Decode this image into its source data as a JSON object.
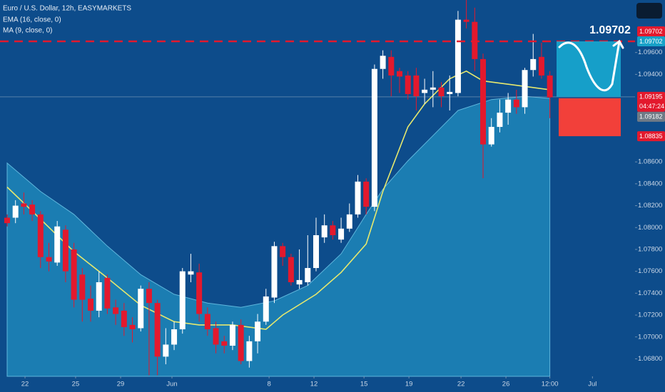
{
  "chart_data": {
    "type": "candlestick",
    "title": "Euro / U.S. Dollar, 12h, EASYMARKETS",
    "up_color": "#ffffff",
    "down_color": "#e3192d",
    "x": [
      0,
      1,
      2,
      3,
      4,
      5,
      6,
      7,
      8,
      9,
      10,
      11,
      12,
      13,
      14,
      15,
      16,
      17,
      18,
      19,
      20,
      21,
      22,
      23,
      24,
      25,
      26,
      27,
      28,
      29,
      30,
      31,
      32,
      33,
      34,
      35,
      36,
      37,
      38,
      39,
      40,
      41,
      42,
      43,
      44,
      45,
      46,
      47,
      48,
      49,
      50,
      51,
      52,
      53,
      54,
      55,
      56,
      57,
      58,
      59,
      60,
      61,
      62,
      63,
      64,
      65
    ],
    "open": [
      1.0809,
      1.0809,
      1.0822,
      1.0821,
      1.0812,
      1.0773,
      1.0768,
      1.0798,
      1.078,
      1.0757,
      1.0735,
      1.0724,
      1.0754,
      1.0727,
      1.0724,
      1.0711,
      1.0708,
      1.0744,
      1.0731,
      1.0682,
      1.0693,
      1.0707,
      1.0757,
      1.0759,
      1.0721,
      1.0708,
      1.0696,
      1.0692,
      1.0711,
      1.0678,
      1.0696,
      1.0714,
      1.0736,
      1.0783,
      1.0773,
      1.0748,
      1.075,
      1.0763,
      1.0791,
      1.0802,
      1.0789,
      1.0799,
      1.0812,
      1.0842,
      1.0819,
      1.0945,
      1.0956,
      1.0943,
      1.0939,
      1.0939,
      1.0923,
      1.0926,
      1.0928,
      1.0922,
      1.0923,
      1.099,
      1.0988,
      1.0954,
      1.0876,
      1.0892,
      1.0905,
      1.0917,
      1.091,
      1.0944,
      1.0956,
      1.0939
    ],
    "high": [
      1.0812,
      1.0825,
      1.0832,
      1.0825,
      1.0815,
      1.0786,
      1.0806,
      1.0802,
      1.0786,
      1.0763,
      1.0747,
      1.076,
      1.0757,
      1.0734,
      1.0731,
      1.0718,
      1.0747,
      1.075,
      1.0734,
      1.0708,
      1.0714,
      1.0763,
      1.0776,
      1.0767,
      1.0727,
      1.0714,
      1.0701,
      1.0714,
      1.0716,
      1.0701,
      1.0721,
      1.0744,
      1.0787,
      1.0786,
      1.0776,
      1.078,
      1.0793,
      1.0809,
      1.0812,
      1.0806,
      1.0809,
      1.0822,
      1.0848,
      1.0845,
      1.0949,
      1.0962,
      1.0962,
      1.0946,
      1.0943,
      1.0946,
      1.0936,
      1.0943,
      1.0933,
      1.0939,
      1.0998,
      1.1008,
      1.1001,
      1.0959,
      1.09,
      1.0917,
      1.0923,
      1.0926,
      1.0946,
      1.0977,
      1.0969,
      1.0943
    ],
    "low": [
      1.0801,
      1.0804,
      1.0812,
      1.0806,
      1.0763,
      1.076,
      1.0765,
      1.075,
      1.0727,
      1.0714,
      1.0714,
      1.0718,
      1.0721,
      1.0711,
      1.0701,
      1.0695,
      1.0705,
      1.0665,
      1.0665,
      1.0675,
      1.0688,
      1.0703,
      1.075,
      1.0714,
      1.0701,
      1.0685,
      1.0685,
      1.0688,
      1.0675,
      1.0672,
      1.0685,
      1.0711,
      1.0731,
      1.0765,
      1.0747,
      1.0744,
      1.0747,
      1.076,
      1.0786,
      1.0789,
      1.0786,
      1.0796,
      1.0809,
      1.0812,
      1.0815,
      1.0936,
      1.092,
      1.0923,
      1.0917,
      1.0907,
      1.0913,
      1.091,
      1.091,
      1.0907,
      1.092,
      1.0982,
      1.0943,
      1.0845,
      1.0874,
      1.0887,
      1.0894,
      1.0904,
      1.0904,
      1.0938,
      1.0936,
      1.09
    ],
    "close": [
      1.0804,
      1.082,
      1.0819,
      1.0812,
      1.0773,
      1.0769,
      1.0801,
      1.076,
      1.0734,
      1.0734,
      1.0724,
      1.075,
      1.0726,
      1.0721,
      1.0709,
      1.0707,
      1.0744,
      1.0731,
      1.0682,
      1.0693,
      1.0707,
      1.076,
      1.076,
      1.0721,
      1.0707,
      1.0693,
      1.0692,
      1.0711,
      1.0678,
      1.0696,
      1.0714,
      1.0737,
      1.0783,
      1.0773,
      1.075,
      1.0752,
      1.0763,
      1.0793,
      1.0802,
      1.0793,
      1.0799,
      1.0812,
      1.0842,
      1.0819,
      1.0945,
      1.0957,
      1.0939,
      1.0938,
      1.0922,
      1.092,
      1.0926,
      1.0928,
      1.092,
      1.0924,
      1.099,
      1.0988,
      1.0954,
      1.0876,
      1.0892,
      1.0905,
      1.0917,
      1.091,
      1.0944,
      1.0954,
      1.0939,
      1.0919
    ],
    "indicators": [
      {
        "name": "EMA (16, close, 0)",
        "type": "line",
        "color": "#e6e86e",
        "x": [
          0,
          3,
          8,
          12,
          16,
          20,
          23,
          27,
          31,
          33,
          37,
          40,
          43,
          45,
          48,
          50,
          53,
          55,
          57,
          61,
          65
        ],
        "values": [
          1.0837,
          1.0815,
          1.0778,
          1.0754,
          1.0729,
          1.0714,
          1.0711,
          1.0711,
          1.0707,
          1.072,
          1.0739,
          1.0759,
          1.0785,
          1.0833,
          1.0892,
          1.0913,
          1.0936,
          1.0943,
          1.0934,
          1.093,
          1.0926
        ]
      },
      {
        "name": "MA (9, close, 0)",
        "type": "area",
        "color": "#1f86b8",
        "x": [
          0,
          4,
          8,
          12,
          16,
          20,
          24,
          28,
          32,
          36,
          40,
          43,
          45,
          48,
          51,
          54,
          58,
          62,
          65
        ],
        "values": [
          1.0859,
          1.0833,
          1.0812,
          1.0783,
          1.0757,
          1.0739,
          1.0731,
          1.0727,
          1.0733,
          1.0747,
          1.0776,
          1.0812,
          1.0835,
          1.0861,
          1.0884,
          1.0907,
          1.0917,
          1.092,
          1.0918
        ]
      }
    ],
    "xlim": [
      -0.855,
      75.2
    ],
    "ylim": [
      1.0664,
      1.1008
    ],
    "xticks": [
      {
        "value": 2.14,
        "label": "22"
      },
      {
        "value": 8.2,
        "label": "25"
      },
      {
        "value": 13.59,
        "label": "29"
      },
      {
        "value": 19.74,
        "label": "Jun"
      },
      {
        "value": 31.37,
        "label": "8"
      },
      {
        "value": 36.75,
        "label": "12"
      },
      {
        "value": 42.74,
        "label": "15"
      },
      {
        "value": 48.12,
        "label": "19"
      },
      {
        "value": 54.36,
        "label": "22"
      },
      {
        "value": 59.74,
        "label": "26"
      },
      {
        "value": 65,
        "label": "12:00"
      },
      {
        "value": 70.1,
        "label": "Jul"
      }
    ],
    "yticks": [
      {
        "value": 1.068,
        "label": "1.06800"
      },
      {
        "value": 1.07,
        "label": "1.07000"
      },
      {
        "value": 1.072,
        "label": "1.07200"
      },
      {
        "value": 1.074,
        "label": "1.07400"
      },
      {
        "value": 1.076,
        "label": "1.07600"
      },
      {
        "value": 1.078,
        "label": "1.07800"
      },
      {
        "value": 1.08,
        "label": "1.08000"
      },
      {
        "value": 1.082,
        "label": "1.08200"
      },
      {
        "value": 1.084,
        "label": "1.08400"
      },
      {
        "value": 1.086,
        "label": "1.08600"
      },
      {
        "value": 1.094,
        "label": "1.09400"
      },
      {
        "value": 1.096,
        "label": "1.09600"
      }
    ],
    "price_tags": [
      {
        "value": 1.09702,
        "color": "#17a2c8"
      },
      {
        "value": 1.09702,
        "color": "#e3192d"
      },
      {
        "value": 1.09195,
        "countdown": "04:47:24",
        "color": "#e3192d"
      },
      {
        "value": 1.09182,
        "color": "#6f7a86"
      },
      {
        "value": 1.08835,
        "color": "#e3192d"
      }
    ],
    "annotation": {
      "text": "1.09702",
      "value": 1.09702
    }
  }
}
